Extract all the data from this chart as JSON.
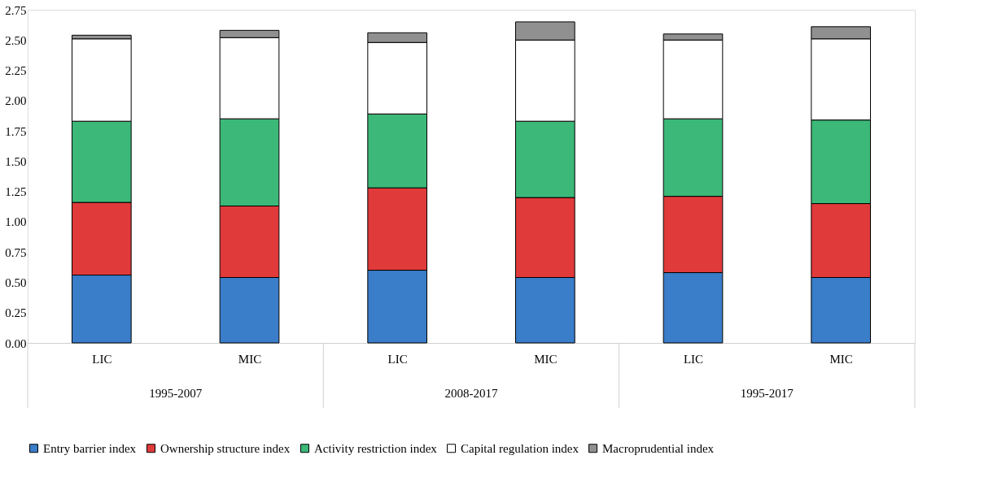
{
  "chart_data": {
    "type": "bar",
    "stacked": true,
    "categories": [
      "LIC",
      "MIC",
      "LIC",
      "MIC",
      "LIC",
      "MIC"
    ],
    "annotations": [
      "1995-2007",
      "2008-2017",
      "1995-2017"
    ],
    "series": [
      {
        "name": "Entry barrier index",
        "color": "#3a7dc9",
        "values": [
          0.56,
          0.54,
          0.6,
          0.54,
          0.58,
          0.54
        ]
      },
      {
        "name": "Ownership structure index",
        "color": "#e03a3a",
        "values": [
          0.6,
          0.59,
          0.68,
          0.66,
          0.63,
          0.61
        ]
      },
      {
        "name": "Activity restriction index",
        "color": "#3cb878",
        "values": [
          0.67,
          0.72,
          0.61,
          0.63,
          0.64,
          0.69
        ]
      },
      {
        "name": "Capital regulation index",
        "color": "#ffffff",
        "values": [
          0.68,
          0.67,
          0.59,
          0.67,
          0.65,
          0.67
        ]
      },
      {
        "name": "Macroprudential index",
        "color": "#909090",
        "values": [
          0.03,
          0.06,
          0.08,
          0.15,
          0.05,
          0.1
        ]
      }
    ],
    "ylim": [
      0,
      2.75
    ],
    "yticks": [
      {
        "value": 0,
        "label": "0.00"
      },
      0.25,
      {
        "value": 0.5,
        "label": "0.50"
      },
      0.75,
      {
        "value": 1,
        "label": "1.00"
      },
      1.25,
      {
        "value": 1.5,
        "label": "1.50"
      },
      1.75,
      {
        "value": 2,
        "label": "2.00"
      },
      2.25,
      {
        "value": 2.5,
        "label": "2.50"
      },
      2.75
    ],
    "grid": false,
    "legend": "bottom"
  }
}
